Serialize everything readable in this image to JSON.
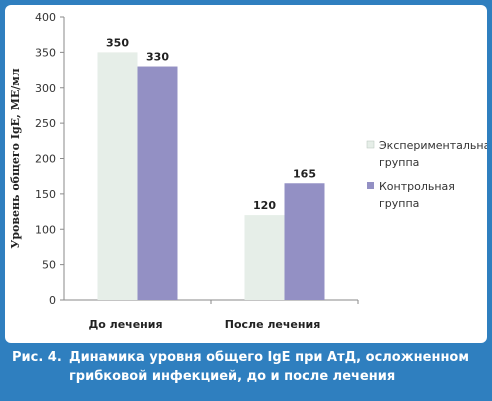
{
  "chart_data": {
    "type": "bar",
    "categories": [
      "До лечения",
      "После лечения"
    ],
    "series": [
      {
        "name": "Экспериментальная группа",
        "values": [
          350,
          120
        ],
        "color": "#e6eee8"
      },
      {
        "name": "Контрольная группа",
        "values": [
          330,
          165
        ],
        "color": "#9390c4"
      }
    ],
    "ylabel": "Уровень общего IgE, МЕ/мл",
    "xlabel": "",
    "ylim": [
      0,
      400
    ],
    "yticks": [
      0,
      50,
      100,
      150,
      200,
      250,
      300,
      350,
      400
    ],
    "data_labels": true,
    "grid": false,
    "legend": "right"
  },
  "caption": {
    "label": "Рис. 4.",
    "line1": "Динамика уровня общего IgE при АтД, осложненном",
    "line2": "грибковой инфекцией, до и после лечения"
  },
  "colors": {
    "background": "#2f7fbf",
    "caption_text": "#ffffff"
  }
}
